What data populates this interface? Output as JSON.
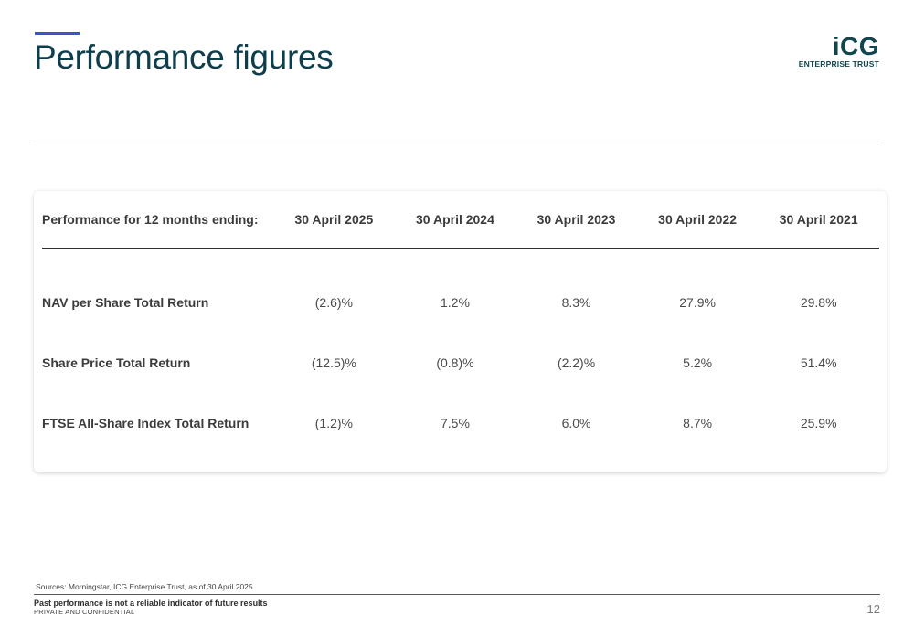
{
  "header": {
    "title": "Performance figures",
    "logo_mark": "iCG",
    "logo_sub": "ENTERPRISE TRUST",
    "accent_color": "#3a53d6",
    "title_color": "#0e3d4c"
  },
  "table": {
    "header_label": "Performance for 12 months ending:",
    "columns": [
      "30 April 2025",
      "30 April 2024",
      "30 April 2023",
      "30 April 2022",
      "30 April 2021"
    ],
    "rows": [
      {
        "label": "NAV per Share Total Return",
        "values": [
          "(2.6)%",
          "1.2%",
          "8.3%",
          "27.9%",
          "29.8%"
        ]
      },
      {
        "label": "Share Price Total Return",
        "values": [
          "(12.5)%",
          "(0.8)%",
          "(2.2)%",
          "5.2%",
          "51.4%"
        ]
      },
      {
        "label": "FTSE All-Share Index Total Return",
        "values": [
          "(1.2)%",
          "7.5%",
          "6.0%",
          "8.7%",
          "25.9%"
        ]
      }
    ]
  },
  "footer": {
    "sources": "Sources: Morningstar, ICG Enterprise Trust, as of 30 April 2025",
    "disclaimer": "Past performance is not a reliable indicator of future results",
    "confidential": "PRIVATE AND CONFIDENTIAL",
    "page_number": "12"
  }
}
